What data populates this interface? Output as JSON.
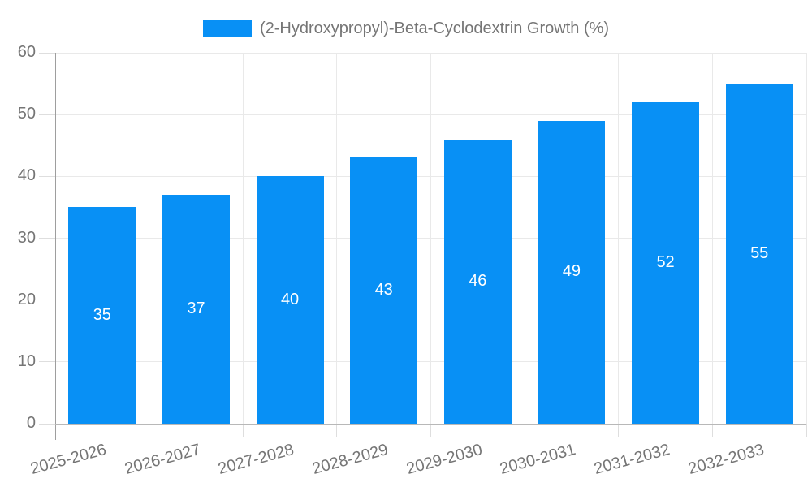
{
  "legend": {
    "label": "(2-Hydroxypropyl)-Beta-Cyclodextrin Growth (%)"
  },
  "chart_data": {
    "type": "bar",
    "title": "(2-Hydroxypropyl)-Beta-Cyclodextrin Growth (%)",
    "categories": [
      "2025-2026",
      "2026-2027",
      "2027-2028",
      "2028-2029",
      "2029-2030",
      "2030-2031",
      "2031-2032",
      "2032-2033"
    ],
    "values": [
      35,
      37,
      40,
      43,
      46,
      49,
      52,
      55
    ],
    "xlabel": "",
    "ylabel": "",
    "ylim": [
      0,
      60
    ],
    "yticks": [
      0,
      10,
      20,
      30,
      40,
      50,
      60
    ],
    "grid": true,
    "legend_position": "top-center",
    "value_labels": "inside-center",
    "x_tick_label_rotation_deg": -15,
    "colors": {
      "bar": "#0890f5",
      "grid": "#e9e9e9",
      "tick": "#dedede",
      "y_axis": "#9e9e9e",
      "x_axis": "#b8b8b8",
      "text": "#757575",
      "value_label": "#ffffff"
    }
  }
}
